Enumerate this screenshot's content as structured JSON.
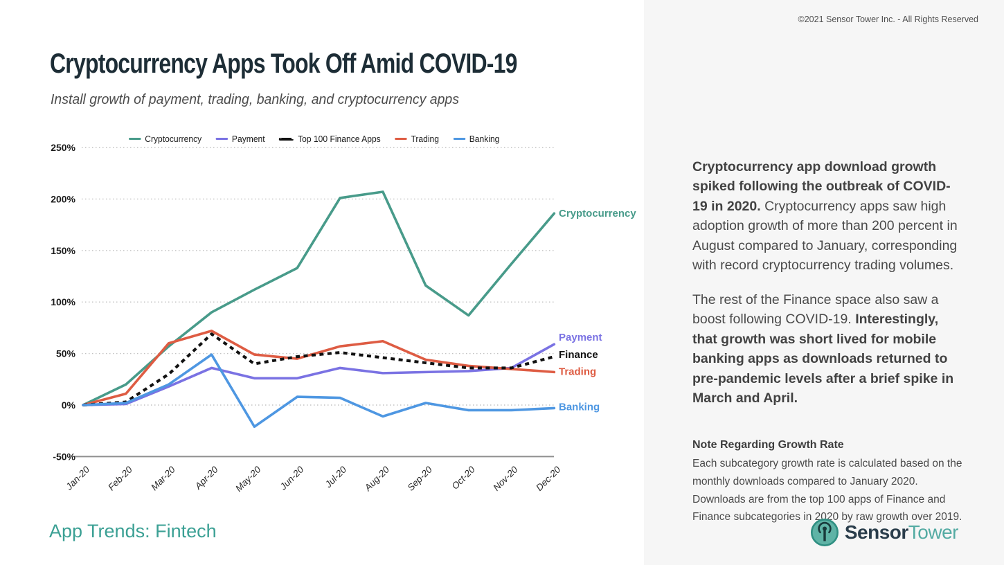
{
  "header": {
    "title": "Cryptocurrency Apps Took Off Amid COVID-19",
    "subtitle": "Install growth of payment, trading, banking, and cryptocurrency apps",
    "copyright": "©2021 Sensor Tower Inc. - All Rights Reserved"
  },
  "chart_data": {
    "type": "line",
    "title": "Install growth of payment, trading, banking, and cryptocurrency apps",
    "categories": [
      "Jan-20",
      "Feb-20",
      "Mar-20",
      "Apr-20",
      "May-20",
      "Jun-20",
      "Jul-20",
      "Aug-20",
      "Sep-20",
      "Oct-20",
      "Nov-20",
      "Dec-20"
    ],
    "ylim": [
      -50,
      250
    ],
    "grid": "dotted horizontal",
    "legend_position": "top",
    "yticks": [
      {
        "value": 250,
        "label": "250%"
      },
      {
        "value": 200,
        "label": "200%"
      },
      {
        "value": 150,
        "label": "150%"
      },
      {
        "value": 100,
        "label": "100%"
      },
      {
        "value": 50,
        "label": "50%"
      },
      {
        "value": 0,
        "label": "0%"
      },
      {
        "value": -50,
        "label": "-50%"
      }
    ],
    "series": [
      {
        "id": "cryptocurrency",
        "legend_label": "Cryptocurrency",
        "end_label": "Cryptocurrency",
        "color": "#489b8a",
        "dashed": false,
        "values": [
          0,
          20,
          57,
          90,
          112,
          133,
          201,
          207,
          116,
          87,
          137,
          186
        ]
      },
      {
        "id": "payment",
        "legend_label": "Payment",
        "end_label": "Payment",
        "color": "#7a72e3",
        "dashed": false,
        "values": [
          0,
          1,
          18,
          36,
          26,
          26,
          36,
          31,
          32,
          33,
          36,
          59
        ]
      },
      {
        "id": "finance",
        "legend_label": "Top 100 Finance Apps",
        "end_label": "Finance",
        "color": "#111111",
        "dashed": true,
        "values": [
          0,
          3,
          30,
          69,
          40,
          47,
          51,
          46,
          41,
          36,
          36,
          47
        ]
      },
      {
        "id": "trading",
        "legend_label": "Trading",
        "end_label": "Trading",
        "color": "#de5c43",
        "dashed": false,
        "values": [
          0,
          11,
          60,
          72,
          49,
          45,
          57,
          62,
          44,
          38,
          35,
          32
        ]
      },
      {
        "id": "banking",
        "legend_label": "Banking",
        "end_label": "Banking",
        "color": "#4e97e2",
        "dashed": false,
        "values": [
          0,
          2,
          20,
          49,
          -21,
          8,
          7,
          -11,
          2,
          -5,
          -5,
          -3
        ]
      }
    ]
  },
  "commentary": {
    "p1_bold": "Cryptocurrency app download growth spiked following the outbreak of COVID-19 in 2020.",
    "p1_regular": " Cryptocurrency apps saw high adoption growth of more than 200 percent in August compared to January, corresponding with record cryptocurrency trading volumes.",
    "p2_regular": "The rest of the Finance space also saw a boost following COVID-19. ",
    "p2_bold": "Interestingly, that growth was short lived for mobile banking apps as downloads returned to pre-pandemic levels after a brief spike in March and April."
  },
  "note": {
    "title": "Note Regarding Growth Rate",
    "body": "Each subcategory growth rate is calculated based on the monthly downloads compared to January 2020. Downloads are from the top 100 apps of Finance and Finance subcategories in 2020 by raw growth over 2019."
  },
  "footer": {
    "report_tag": "App Trends: Fintech",
    "logo_part1": "Sensor",
    "logo_part2": "Tower"
  }
}
